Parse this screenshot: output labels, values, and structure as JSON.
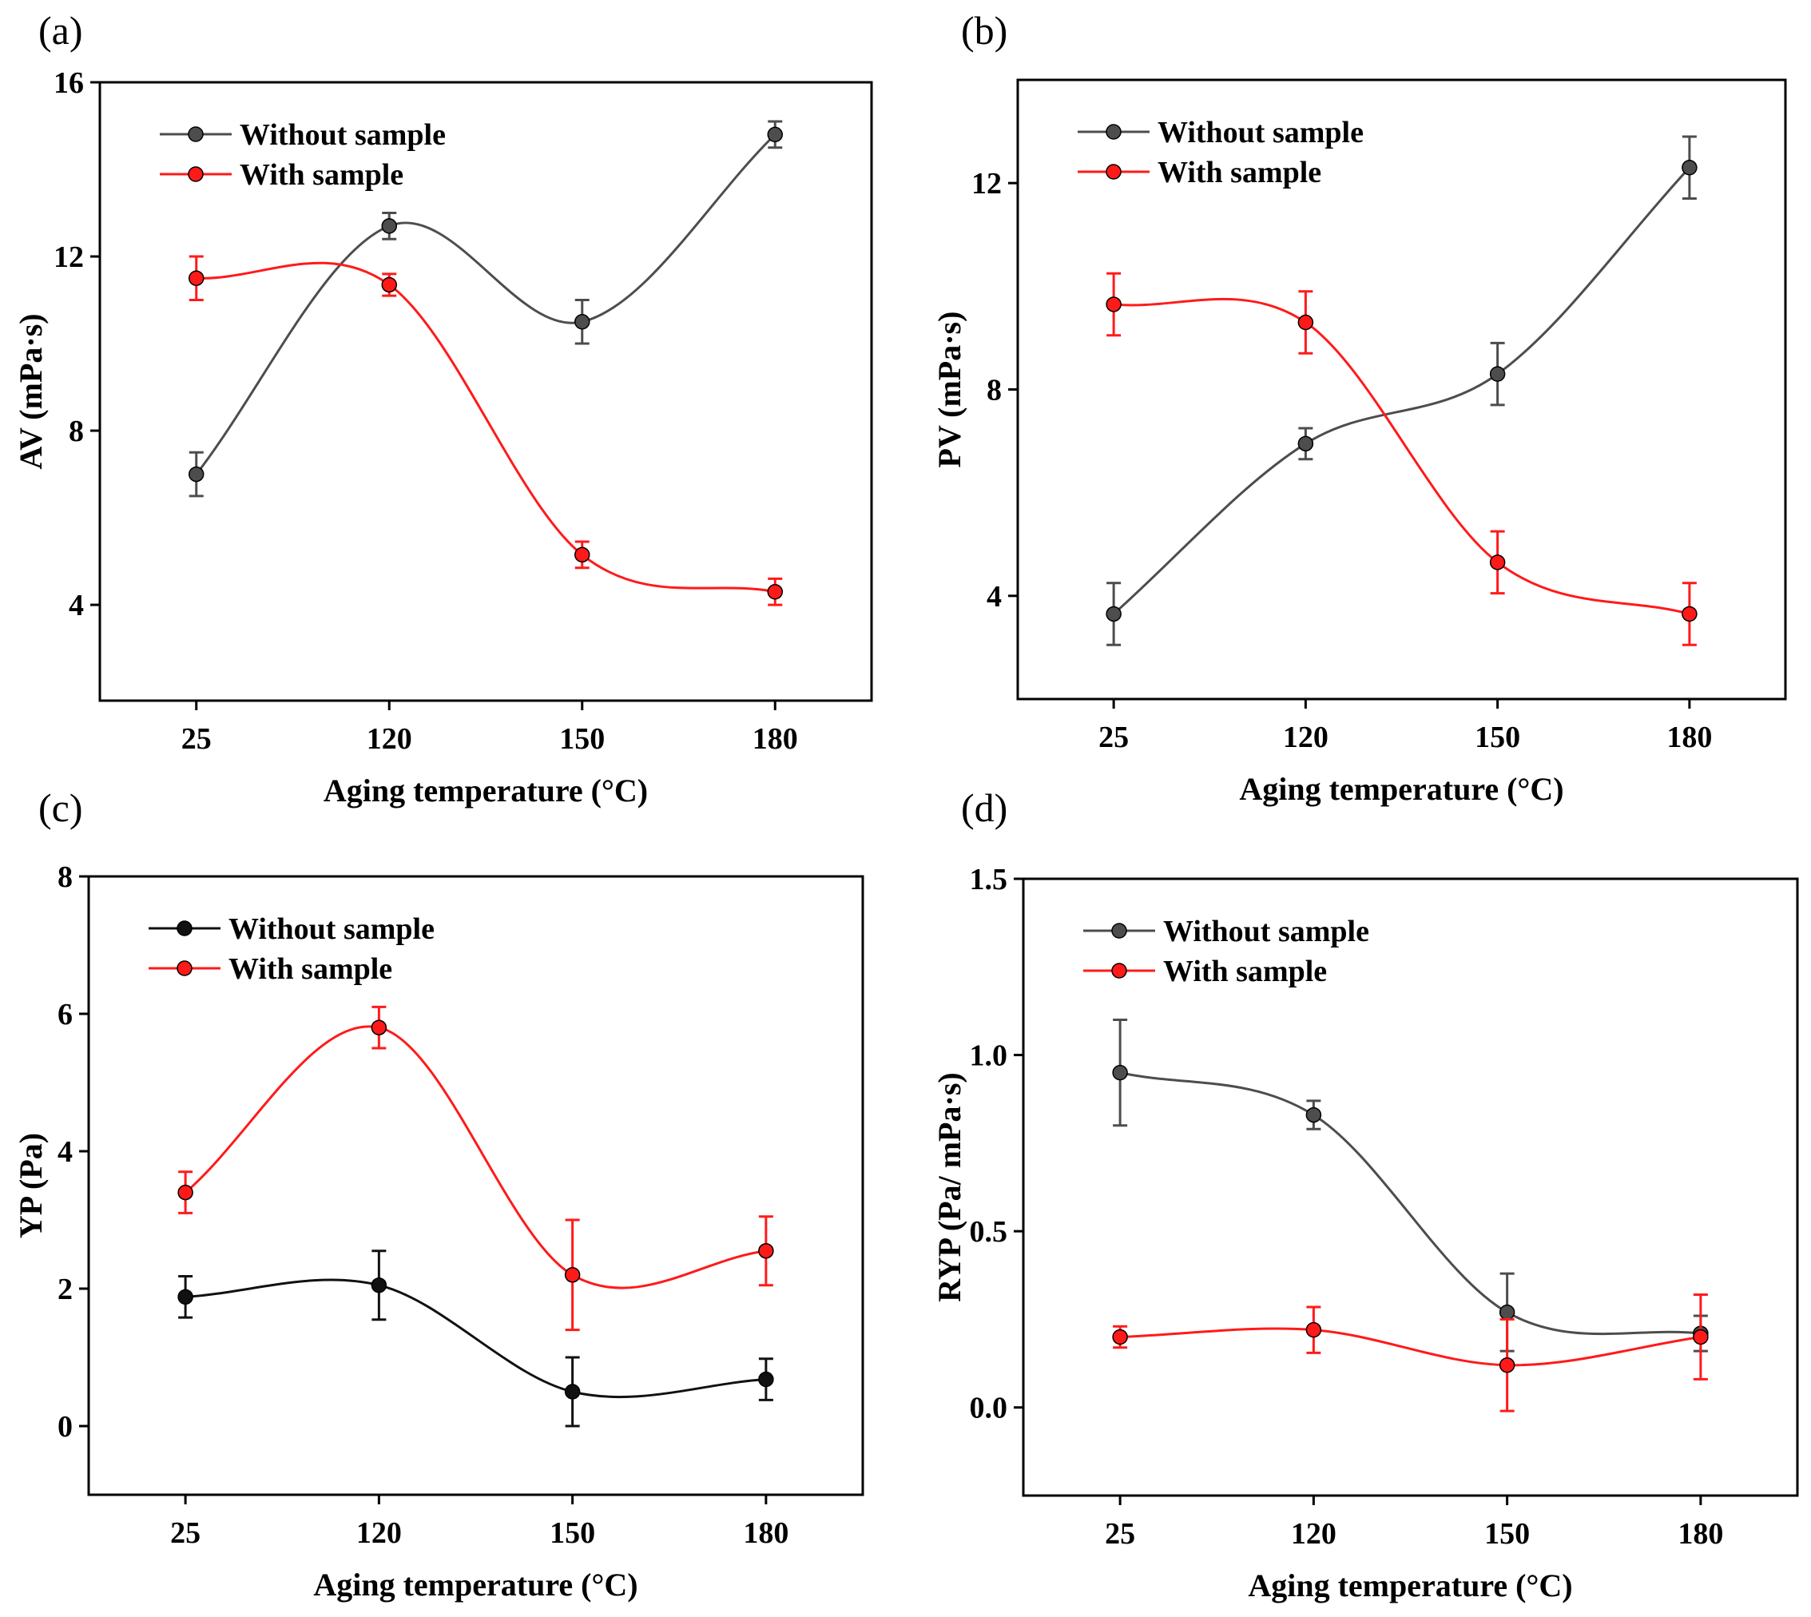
{
  "colors": {
    "without": "#4d4d4d",
    "without_c": "#111111",
    "with": "#ff1a1a"
  },
  "chart_data": [
    {
      "panel": "(a)",
      "type": "line",
      "categories": [
        "25",
        "120",
        "150",
        "180"
      ],
      "ylabel": "AV (mPa·s)",
      "xlabel": "Aging temperature (°C)",
      "ylim": [
        1.8,
        16
      ],
      "yticks": [
        "4",
        "8",
        "12",
        "16"
      ],
      "legend": "top-left",
      "series": [
        {
          "name": "Without sample",
          "values": [
            7.0,
            12.7,
            10.5,
            14.8
          ],
          "errors": [
            0.5,
            0.3,
            0.5,
            0.3
          ],
          "color": "without"
        },
        {
          "name": "With sample",
          "values": [
            11.5,
            11.35,
            5.15,
            4.3
          ],
          "errors": [
            0.5,
            0.25,
            0.3,
            0.3
          ],
          "color": "with"
        }
      ]
    },
    {
      "panel": "(b)",
      "type": "line",
      "categories": [
        "25",
        "120",
        "150",
        "180"
      ],
      "ylabel": "PV (mPa·s)",
      "xlabel": "Aging temperature (°C)",
      "ylim": [
        2,
        14
      ],
      "yticks": [
        "4",
        "8",
        "12"
      ],
      "legend": "top-left",
      "series": [
        {
          "name": "Without sample",
          "values": [
            3.65,
            6.95,
            8.3,
            12.3
          ],
          "errors": [
            0.6,
            0.3,
            0.6,
            0.6
          ],
          "color": "without"
        },
        {
          "name": "With sample",
          "values": [
            9.65,
            9.3,
            4.65,
            3.65
          ],
          "errors": [
            0.6,
            0.6,
            0.6,
            0.6
          ],
          "color": "with"
        }
      ]
    },
    {
      "panel": "(c)",
      "type": "line",
      "categories": [
        "25",
        "120",
        "150",
        "180"
      ],
      "ylabel": "YP (Pa)",
      "xlabel": "Aging temperature (°C)",
      "ylim": [
        -1,
        8
      ],
      "yticks": [
        "0",
        "2",
        "4",
        "6",
        "8"
      ],
      "legend": "top-left",
      "series": [
        {
          "name": "Without sample",
          "values": [
            1.88,
            2.05,
            0.5,
            0.68
          ],
          "errors": [
            0.3,
            0.5,
            0.5,
            0.3
          ],
          "color": "without_c"
        },
        {
          "name": "With sample",
          "values": [
            3.4,
            5.8,
            2.2,
            2.55
          ],
          "errors": [
            0.3,
            0.3,
            0.8,
            0.5
          ],
          "color": "with"
        }
      ]
    },
    {
      "panel": "(d)",
      "type": "line",
      "categories": [
        "25",
        "120",
        "150",
        "180"
      ],
      "ylabel": "RYP (Pa/ mPa·s)",
      "xlabel": "Aging temperature (°C)",
      "ylim": [
        -0.25,
        1.5
      ],
      "yticks": [
        "0.0",
        "0.5",
        "1.0",
        "1.5"
      ],
      "legend": "top-left",
      "series": [
        {
          "name": "Without sample",
          "values": [
            0.95,
            0.83,
            0.27,
            0.21
          ],
          "errors": [
            0.15,
            0.04,
            0.11,
            0.05
          ],
          "color": "without"
        },
        {
          "name": "With sample",
          "values": [
            0.2,
            0.22,
            0.12,
            0.2
          ],
          "errors": [
            0.03,
            0.065,
            0.13,
            0.12
          ],
          "color": "with"
        }
      ]
    }
  ]
}
